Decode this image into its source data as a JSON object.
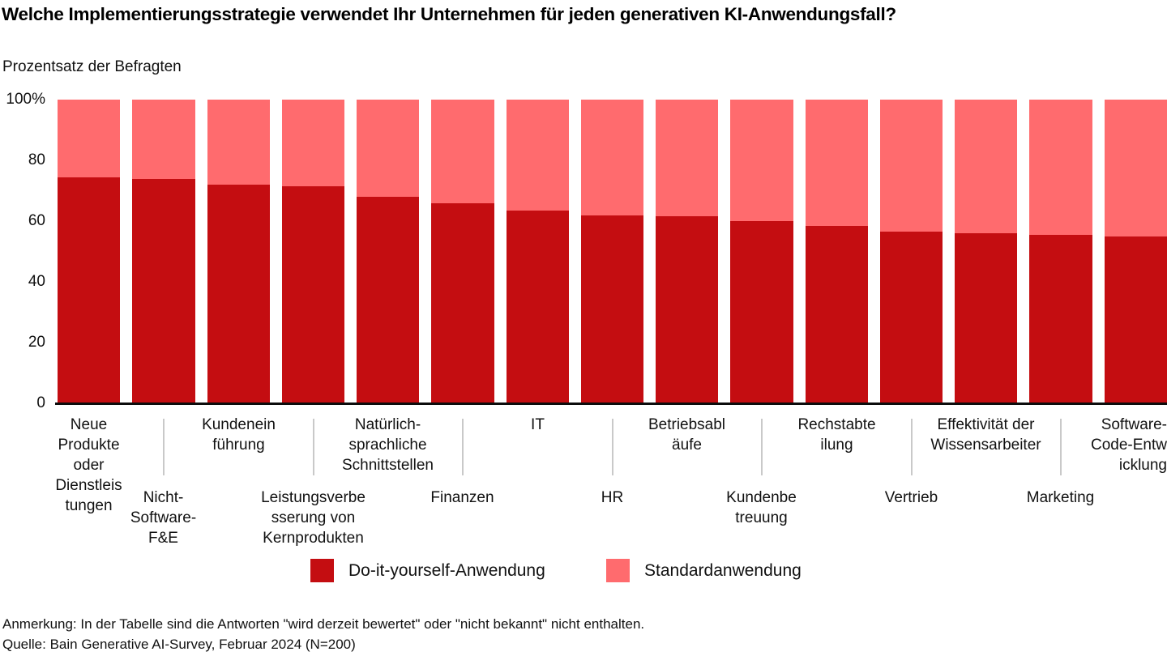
{
  "title": "Welche Implementierungsstrategie verwendet Ihr Unternehmen für jeden generativen KI-Anwendungsfall?",
  "subtitle": "Prozentsatz der Befragten",
  "colors": {
    "diy": "#c40d11",
    "standard": "#ff6b6e",
    "axis": "#0d0d0d",
    "separator": "#c9c9c9"
  },
  "y_axis": {
    "ticks": [
      {
        "label": "100%",
        "value": 100
      },
      {
        "label": "80",
        "value": 80
      },
      {
        "label": "60",
        "value": 60
      },
      {
        "label": "40",
        "value": 40
      },
      {
        "label": "20",
        "value": 20
      },
      {
        "label": "0",
        "value": 0
      }
    ]
  },
  "chart_data": {
    "type": "bar",
    "stacked": true,
    "percent_stacked": true,
    "title": "Welche Implementierungsstrategie verwendet Ihr Unternehmen für jeden generativen KI-Anwendungsfall?",
    "ylabel": "Prozentsatz der Befragten",
    "ylim": [
      0,
      100
    ],
    "grid": false,
    "legend_position": "bottom",
    "categories": [
      "Neue Produkte oder Dienstleistungen",
      "Nicht-Software-F&E",
      "Kundeneinführung",
      "Leistungsverbesserung von Kernprodukten",
      "Natürlich-sprachliche Schnittstellen",
      "Finanzen",
      "IT",
      "HR",
      "Betriebsabläufe",
      "Kundenbetreuung",
      "Rechstabteilung",
      "Vertrieb",
      "Effektivität der Wissensarbeiter",
      "Marketing",
      "Software-Code-Entwicklung"
    ],
    "series": [
      {
        "name": "Do-it-yourself-Anwendung",
        "color": "#c40d11",
        "values": [
          74.5,
          74,
          72,
          71.5,
          68,
          66,
          63.5,
          62,
          61.5,
          60,
          58.5,
          56.5,
          56,
          55.5,
          55
        ]
      },
      {
        "name": "Standardanwendung",
        "color": "#ff6b6e",
        "values": [
          25.5,
          26,
          28,
          28.5,
          32,
          34,
          36.5,
          38,
          38.5,
          40,
          41.5,
          43.5,
          44,
          44.5,
          45
        ]
      }
    ]
  },
  "x_axis": {
    "row_top": [
      {
        "bar_index": 0,
        "lines": [
          "Neue",
          "Produkte",
          "oder",
          "Dienstleis",
          "tungen"
        ]
      },
      {
        "bar_index": 2,
        "lines": [
          "Kundenein",
          "führung"
        ]
      },
      {
        "bar_index": 4,
        "lines": [
          "Natürlich-",
          "sprachliche",
          "Schnittstellen"
        ]
      },
      {
        "bar_index": 6,
        "lines": [
          "IT"
        ]
      },
      {
        "bar_index": 8,
        "lines": [
          "Betriebsabl",
          "äufe"
        ]
      },
      {
        "bar_index": 10,
        "lines": [
          "Rechstabte",
          "ilung"
        ]
      },
      {
        "bar_index": 12,
        "lines": [
          "Effektivität der",
          "Wissensarbeiter"
        ]
      },
      {
        "bar_index": 14,
        "lines": [
          "Software-",
          "Code-Entw",
          "icklung"
        ]
      }
    ],
    "row_bottom": [
      {
        "bar_index": 1,
        "lines": [
          "Nicht-",
          "Software-",
          "F&E"
        ]
      },
      {
        "bar_index": 3,
        "lines": [
          "Leistungsverbe",
          "sserung von",
          "Kernprodukten"
        ]
      },
      {
        "bar_index": 5,
        "lines": [
          "Finanzen"
        ]
      },
      {
        "bar_index": 7,
        "lines": [
          "HR"
        ]
      },
      {
        "bar_index": 9,
        "lines": [
          "Kundenbe",
          "treuung"
        ]
      },
      {
        "bar_index": 11,
        "lines": [
          "Vertrieb"
        ]
      },
      {
        "bar_index": 13,
        "lines": [
          "Marketing"
        ]
      }
    ]
  },
  "legend": {
    "items": [
      {
        "label": "Do-it-yourself-Anwendung",
        "color": "#c40d11"
      },
      {
        "label": "Standardanwendung",
        "color": "#ff6b6e"
      }
    ]
  },
  "footer": {
    "note": "Anmerkung: In der Tabelle sind die Antworten \"wird derzeit bewertet\" oder \"nicht bekannt\" nicht enthalten.",
    "source": "Quelle: Bain Generative AI-Survey, Februar 2024 (N=200)"
  }
}
